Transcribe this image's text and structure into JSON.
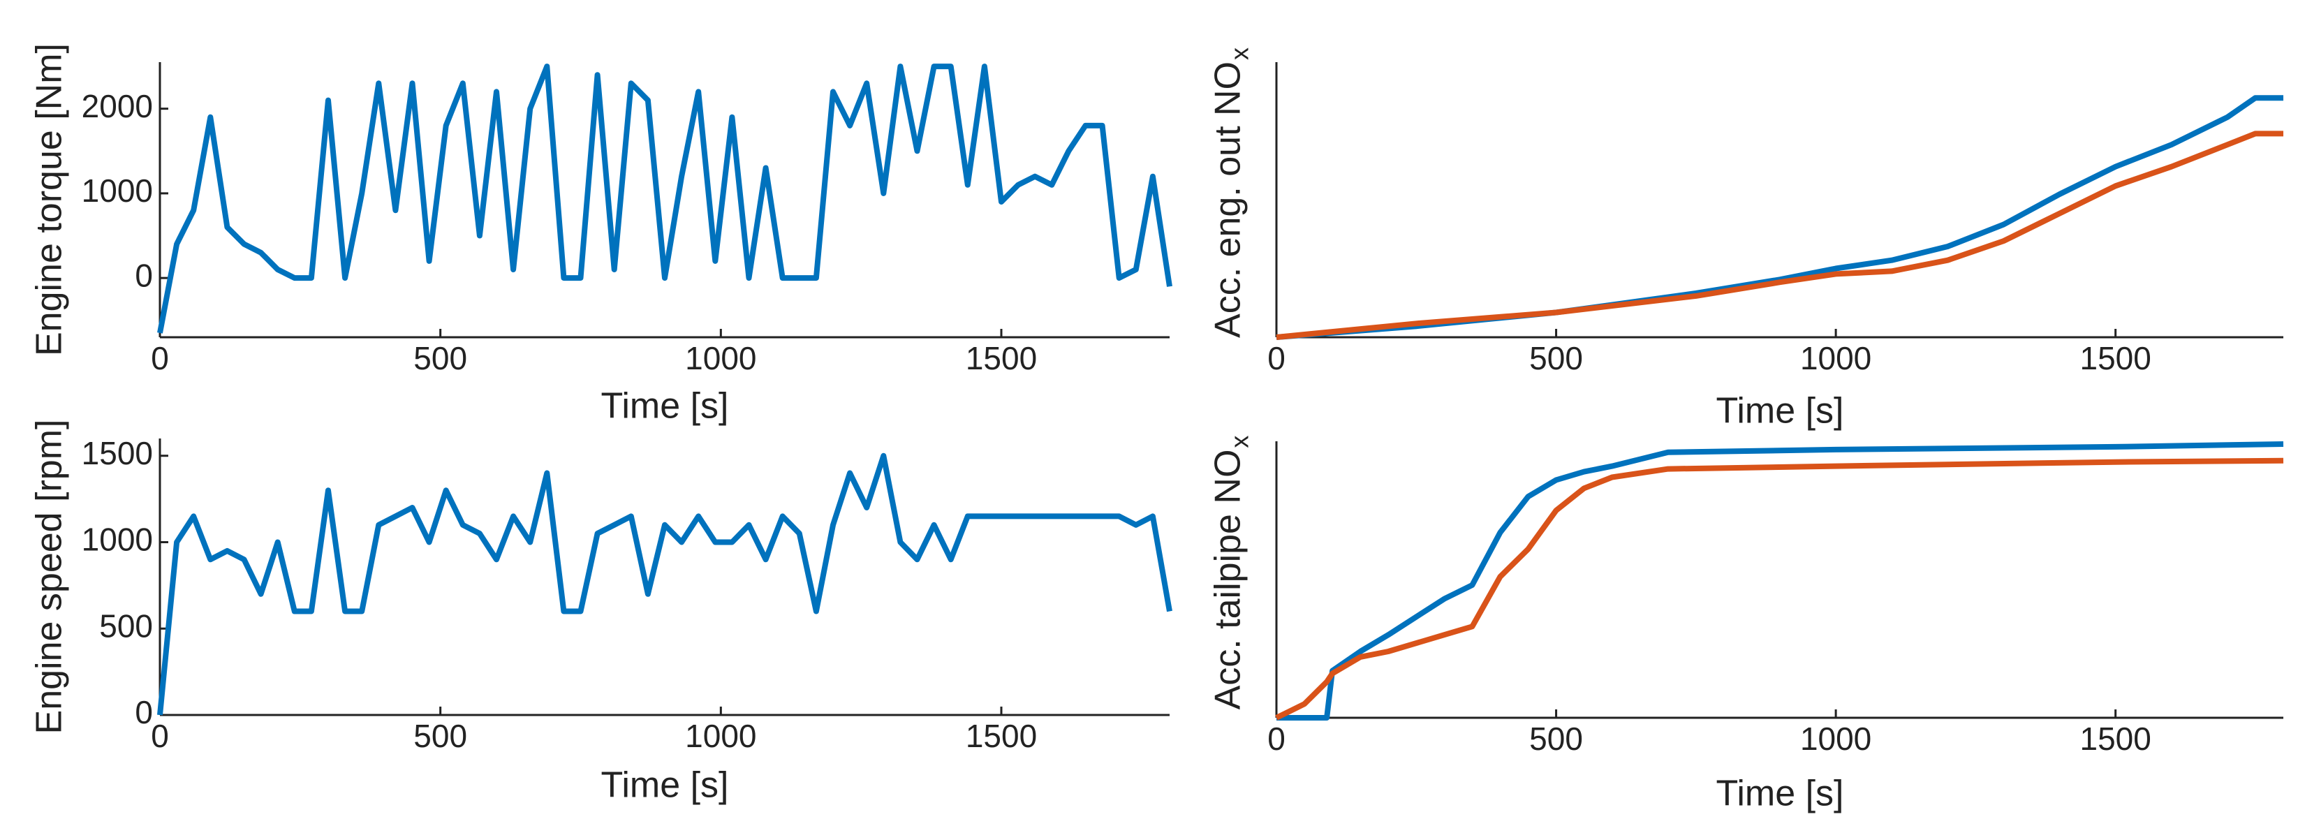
{
  "chart_data": [
    {
      "type": "line",
      "xlabel": "Time [s]",
      "ylabel": "Engine torque [Nm]",
      "xlim": [
        0,
        1800
      ],
      "ylim": [
        -700,
        2550
      ],
      "xticks": [
        0,
        500,
        1000,
        1500
      ],
      "yticks": [
        0,
        1000,
        2000
      ],
      "x": [
        0,
        30,
        60,
        90,
        120,
        150,
        180,
        210,
        240,
        270,
        300,
        330,
        360,
        390,
        420,
        450,
        480,
        510,
        540,
        570,
        600,
        630,
        660,
        690,
        720,
        750,
        780,
        810,
        840,
        870,
        900,
        930,
        960,
        990,
        1020,
        1050,
        1080,
        1110,
        1140,
        1170,
        1200,
        1230,
        1260,
        1290,
        1320,
        1350,
        1380,
        1410,
        1440,
        1470,
        1500,
        1530,
        1560,
        1590,
        1620,
        1650,
        1680,
        1710,
        1740,
        1770,
        1800
      ],
      "series": [
        {
          "color": "#0072bd",
          "values": [
            -650,
            400,
            800,
            1900,
            600,
            400,
            300,
            100,
            0,
            0,
            2100,
            0,
            1000,
            2300,
            800,
            2300,
            200,
            1800,
            2300,
            500,
            2200,
            100,
            2000,
            2500,
            0,
            0,
            2400,
            100,
            2300,
            2100,
            0,
            1200,
            2200,
            200,
            1900,
            0,
            1300,
            0,
            0,
            0,
            2200,
            1800,
            2300,
            1000,
            2500,
            1500,
            2500,
            2500,
            1100,
            2500,
            900,
            1100,
            1200,
            1100,
            1500,
            1800,
            1800,
            0,
            100,
            1200,
            -100
          ]
        }
      ]
    },
    {
      "type": "line",
      "xlabel": "Time [s]",
      "ylabel": "Acc. eng. out NO",
      "ylabel_subscript": "x",
      "xlim": [
        0,
        1800
      ],
      "ylim": [
        0,
        1
      ],
      "xticks": [
        0,
        500,
        1000,
        1500
      ],
      "x": [
        0,
        250,
        500,
        750,
        900,
        1000,
        1100,
        1200,
        1300,
        1400,
        1500,
        1600,
        1700,
        1750,
        1800
      ],
      "series": [
        {
          "color": "#0072bd",
          "values": [
            0,
            0.04,
            0.09,
            0.16,
            0.21,
            0.25,
            0.28,
            0.33,
            0.41,
            0.52,
            0.62,
            0.7,
            0.8,
            0.87,
            0.87
          ]
        },
        {
          "color": "#d95319",
          "values": [
            0,
            0.05,
            0.09,
            0.15,
            0.2,
            0.23,
            0.24,
            0.28,
            0.35,
            0.45,
            0.55,
            0.62,
            0.7,
            0.74,
            0.74
          ]
        }
      ]
    },
    {
      "type": "line",
      "xlabel": "Time [s]",
      "ylabel": "Engine speed [rpm]",
      "xlim": [
        0,
        1800
      ],
      "ylim": [
        0,
        1600
      ],
      "xticks": [
        0,
        500,
        1000,
        1500
      ],
      "yticks": [
        0,
        500,
        1000,
        1500
      ],
      "x": [
        0,
        30,
        60,
        90,
        120,
        150,
        180,
        210,
        240,
        270,
        300,
        330,
        360,
        390,
        420,
        450,
        480,
        510,
        540,
        570,
        600,
        630,
        660,
        690,
        720,
        750,
        780,
        810,
        840,
        870,
        900,
        930,
        960,
        990,
        1020,
        1050,
        1080,
        1110,
        1140,
        1170,
        1200,
        1230,
        1260,
        1290,
        1320,
        1350,
        1380,
        1410,
        1440,
        1470,
        1500,
        1530,
        1560,
        1590,
        1620,
        1650,
        1680,
        1710,
        1740,
        1770,
        1800
      ],
      "series": [
        {
          "color": "#0072bd",
          "values": [
            0,
            1000,
            1150,
            900,
            950,
            900,
            700,
            1000,
            600,
            600,
            1300,
            600,
            600,
            1100,
            1150,
            1200,
            1000,
            1300,
            1100,
            1050,
            900,
            1150,
            1000,
            1400,
            600,
            600,
            1050,
            1100,
            1150,
            700,
            1100,
            1000,
            1150,
            1000,
            1000,
            1100,
            900,
            1150,
            1050,
            600,
            1100,
            1400,
            1200,
            1500,
            1000,
            900,
            1100,
            900,
            1150,
            1150,
            1150,
            1150,
            1150,
            1150,
            1150,
            1150,
            1150,
            1150,
            1100,
            1150,
            600
          ]
        }
      ]
    },
    {
      "type": "line",
      "xlabel": "Time [s]",
      "ylabel": "Acc. tailpipe NO",
      "ylabel_subscript": "x",
      "xlim": [
        0,
        1800
      ],
      "ylim": [
        0,
        1
      ],
      "xticks": [
        0,
        500,
        1000,
        1500
      ],
      "x": [
        0,
        50,
        90,
        100,
        150,
        200,
        300,
        350,
        400,
        450,
        500,
        550,
        600,
        700,
        1000,
        1500,
        1800
      ],
      "series": [
        {
          "color": "#0072bd",
          "values": [
            0,
            0,
            0,
            0.17,
            0.24,
            0.3,
            0.43,
            0.48,
            0.67,
            0.8,
            0.86,
            0.89,
            0.91,
            0.96,
            0.97,
            0.98,
            0.99
          ]
        },
        {
          "color": "#d95319",
          "values": [
            0,
            0.05,
            0.13,
            0.16,
            0.22,
            0.24,
            0.3,
            0.33,
            0.51,
            0.61,
            0.75,
            0.83,
            0.87,
            0.9,
            0.91,
            0.925,
            0.93
          ]
        }
      ]
    }
  ]
}
